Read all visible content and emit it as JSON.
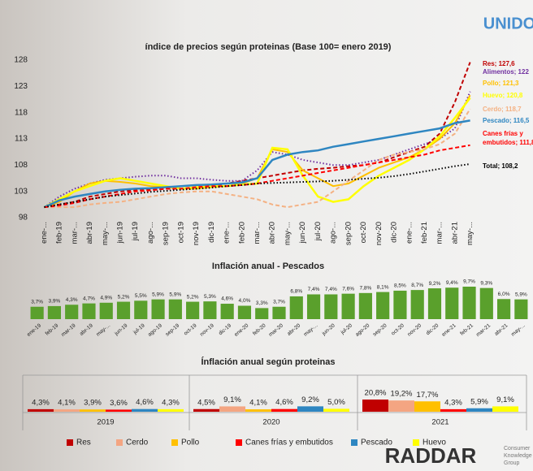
{
  "chart_data": [
    {
      "type": "line",
      "title": "índice de precios según proteinas (Base 100= enero 2019)",
      "categories": [
        "ene-...",
        "feb-19",
        "mar-...",
        "abr-19",
        "may-...",
        "jun-19",
        "jul-19",
        "ago-...",
        "sep-19",
        "oct-19",
        "nov-19",
        "dic-19",
        "ene-...",
        "feb-20",
        "mar-...",
        "abr-20",
        "may-...",
        "jun-20",
        "jul-20",
        "ago-...",
        "sep-20",
        "oct-20",
        "nov-20",
        "dic-20",
        "ene-...",
        "feb-21",
        "mar-...",
        "abr-21",
        "may-..."
      ],
      "ylim": [
        98,
        128
      ],
      "yticks": [
        98,
        103,
        108,
        113,
        118,
        123,
        128
      ],
      "grid": false,
      "series": [
        {
          "name": "Res",
          "color": "#c00000",
          "dash": "dashed",
          "end_label": [
            "Res; 127,6"
          ],
          "values": [
            100,
            100.5,
            101,
            102,
            102.5,
            103,
            103.2,
            103.3,
            103.5,
            103.5,
            103.7,
            104,
            104.5,
            105,
            105.5,
            106,
            106.5,
            107,
            107.3,
            107.5,
            107.8,
            108,
            108.5,
            109.5,
            110.5,
            111.5,
            114,
            120,
            127.6
          ]
        },
        {
          "name": "Alimentos",
          "color": "#7030a0",
          "dash": "dotted",
          "end_label": [
            "Alimentos; 122"
          ],
          "values": [
            100,
            102,
            103.5,
            104.5,
            105.2,
            105.5,
            105.8,
            106,
            106,
            105.5,
            105.5,
            105.2,
            105,
            105,
            107,
            110.5,
            110,
            109,
            108.5,
            108,
            108,
            108.5,
            109,
            110,
            111,
            112,
            113,
            115,
            122
          ]
        },
        {
          "name": "Pollo",
          "color": "#ffc000",
          "dash": "solid",
          "end_label": [
            "Pollo; 121,3"
          ],
          "values": [
            100,
            101,
            103,
            104.5,
            105,
            104.8,
            104.5,
            104,
            103.8,
            103.5,
            103.5,
            103.8,
            104,
            104.5,
            105.5,
            111,
            110.5,
            107,
            105.5,
            104,
            104.5,
            106,
            107.5,
            108.5,
            109.5,
            111,
            113,
            116,
            121.3
          ]
        },
        {
          "name": "Huevo",
          "color": "#ffff00",
          "dash": "solid",
          "end_label": [
            "Huevo; 120,8"
          ],
          "values": [
            100,
            101.5,
            103,
            104,
            105,
            105.5,
            105,
            104.5,
            104,
            103.5,
            103.8,
            104,
            104,
            104.3,
            104.5,
            111.3,
            111,
            106,
            102,
            101,
            101.5,
            104,
            106,
            107.5,
            109,
            111,
            113.5,
            117,
            120.8
          ]
        },
        {
          "name": "Cerdo",
          "color": "#f4b183",
          "dash": "dashed",
          "end_label": [
            "Cerdo; 118,7"
          ],
          "values": [
            100,
            100,
            100,
            100.5,
            100.8,
            101,
            101.5,
            102,
            102.5,
            102.8,
            103,
            103,
            102.5,
            102,
            101.5,
            100.5,
            100,
            100.5,
            101,
            103,
            105,
            107,
            109,
            110,
            110.5,
            111,
            112,
            114,
            118.7
          ]
        },
        {
          "name": "Pescado",
          "color": "#2e86c1",
          "dash": "solid",
          "end_label": [
            "Pescado; 116,5"
          ],
          "values": [
            100,
            101.3,
            102,
            102.5,
            103,
            103.3,
            103.5,
            103.6,
            103.8,
            104,
            104.2,
            104.3,
            104.5,
            104.7,
            105.5,
            109,
            110,
            110.5,
            110.8,
            111.5,
            112,
            112.5,
            113,
            113.5,
            114,
            114.5,
            115,
            116,
            116.5
          ]
        },
        {
          "name": "Canes frías y embutidos",
          "color": "#ff0000",
          "dash": "dashed",
          "end_label": [
            "Canes frías y",
            "embutidos; 111,8"
          ],
          "values": [
            100,
            100.3,
            100.8,
            101.5,
            102,
            102.5,
            103,
            103.2,
            103.5,
            103.5,
            103.8,
            104,
            104,
            104.2,
            104.5,
            105,
            105.5,
            106,
            106.5,
            107,
            107.5,
            108,
            108.5,
            109,
            109.5,
            110,
            110.8,
            111.3,
            111.8
          ]
        },
        {
          "name": "Total",
          "color": "#000000",
          "dash": "dotted",
          "end_label": [
            "Total; 108,2"
          ],
          "values": [
            100,
            100.5,
            101,
            101.5,
            102,
            102.3,
            102.6,
            102.9,
            103.1,
            103.3,
            103.5,
            103.7,
            104,
            104.2,
            104.5,
            104.6,
            104.7,
            104.8,
            104.9,
            105,
            105.2,
            105.4,
            105.6,
            105.9,
            106.3,
            106.8,
            107.3,
            107.8,
            108.2
          ]
        }
      ]
    },
    {
      "type": "bar",
      "title": "Inflación anual - Pescados",
      "color": "#5aa02c",
      "categories": [
        "ene-19",
        "feb-19",
        "mar-19",
        "abr-19",
        "may-...",
        "jun-19",
        "jul-19",
        "ago-19",
        "sep-19",
        "oct-19",
        "nov-19",
        "dic-19",
        "ene-20",
        "feb-20",
        "mar-20",
        "abr-20",
        "may-...",
        "jun-20",
        "jul-20",
        "ago-20",
        "sep-20",
        "oct-20",
        "nov-20",
        "dic-20",
        "ene-21",
        "feb-21",
        "mar-21",
        "abr-21",
        "may-..."
      ],
      "values": [
        3.7,
        3.9,
        4.3,
        4.7,
        4.9,
        5.2,
        5.5,
        5.9,
        5.9,
        5.2,
        5.3,
        4.6,
        4.0,
        3.3,
        3.7,
        6.8,
        7.4,
        7.4,
        7.6,
        7.8,
        8.1,
        8.5,
        8.7,
        9.2,
        9.4,
        9.7,
        9.3,
        6.0,
        5.9
      ],
      "value_labels": [
        "3,7%",
        "3,9%",
        "4,3%",
        "4,7%",
        "4,9%",
        "5,2%",
        "5,5%",
        "5,9%",
        "5,9%",
        "5,2%",
        "5,3%",
        "4,6%",
        "4,0%",
        "3,3%",
        "3,7%",
        "6,8%",
        "7,4%",
        "7,4%",
        "7,6%",
        "7,8%",
        "8,1%",
        "8,5%",
        "8,7%",
        "9,2%",
        "9,4%",
        "9,7%",
        "9,3%",
        "6,0%",
        "5,9%"
      ]
    },
    {
      "type": "grouped_bar",
      "title": "Ínflación anual según proteinas",
      "legend": "bottom",
      "categories": [
        "2019",
        "2020",
        "2021"
      ],
      "series": [
        {
          "name": "Res",
          "color": "#c00000",
          "values": [
            4.3,
            4.5,
            20.8
          ],
          "value_labels": [
            "4,3%",
            "4,5%",
            "20,8%"
          ]
        },
        {
          "name": "Cerdo",
          "color": "#f4a582",
          "values": [
            4.1,
            9.1,
            19.2
          ],
          "value_labels": [
            "4,1%",
            "9,1%",
            "19,2%"
          ]
        },
        {
          "name": "Pollo",
          "color": "#ffc000",
          "values": [
            3.9,
            4.1,
            17.7
          ],
          "value_labels": [
            "3,9%",
            "4,1%",
            "17,7%"
          ]
        },
        {
          "name": "Canes frías y embutidos",
          "color": "#ff0000",
          "values": [
            3.6,
            4.6,
            4.3
          ],
          "value_labels": [
            "3,6%",
            "4,6%",
            "4,3%"
          ]
        },
        {
          "name": "Pescado",
          "color": "#2e86c1",
          "values": [
            4.6,
            9.2,
            5.9
          ],
          "value_labels": [
            "4,6%",
            "9,2%",
            "5,9%"
          ]
        },
        {
          "name": "Huevo",
          "color": "#ffff00",
          "values": [
            4.3,
            5.0,
            9.1
          ],
          "value_labels": [
            "4,3%",
            "5,0%",
            "9,1%"
          ]
        }
      ]
    }
  ],
  "logos": {
    "unido": "UNIDO",
    "raddar": "RADDAR",
    "raddar_sub": [
      "Consumer",
      "Knowledge",
      "Group"
    ]
  }
}
